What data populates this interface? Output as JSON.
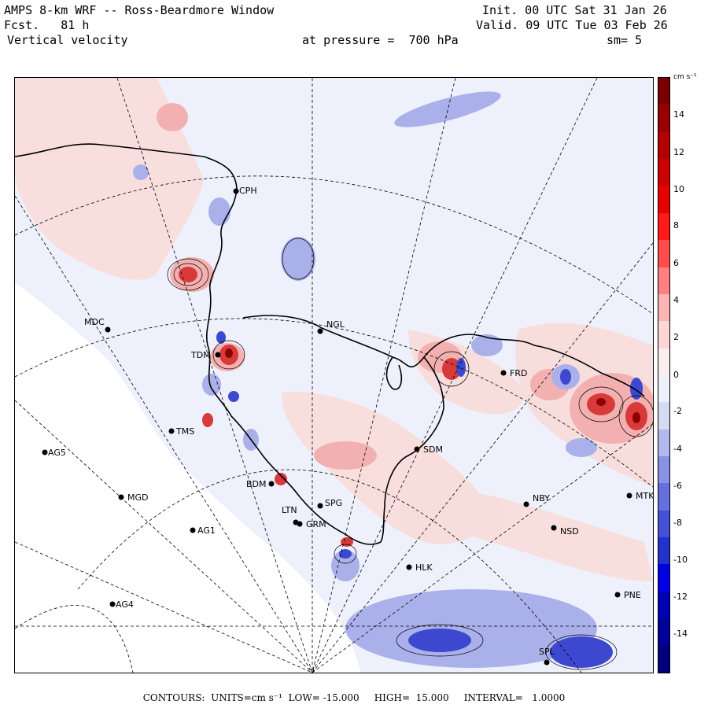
{
  "header": {
    "title": "AMPS 8-km WRF -- Ross-Beardmore Window",
    "fcst": "Fcst.   81 h",
    "field": "Vertical velocity",
    "init": "Init. 00 UTC Sat 31 Jan 26",
    "valid": "Valid. 09 UTC Tue 03 Feb 26",
    "pressure": "at pressure =  700 hPa",
    "smoothing": "sm= 5"
  },
  "colorbar": {
    "unit": "cm s⁻¹",
    "labels": [
      "14",
      "12",
      "10",
      "8",
      "6",
      "4",
      "2",
      "0",
      "-2",
      "-4",
      "-6",
      "-8",
      "-10",
      "-12",
      "-14"
    ],
    "colors": [
      "#7a0000",
      "#990000",
      "#b30000",
      "#cc0000",
      "#e60000",
      "#ff1a1a",
      "#ff4d4d",
      "#ff8080",
      "#ffb3b3",
      "#ffd6d6",
      "#fbeeee",
      "#eef0fb",
      "#d6daf5",
      "#b3b8ee",
      "#8a92e6",
      "#6670dd",
      "#4450d6",
      "#2233cc",
      "#0000e6",
      "#0000b3",
      "#000099",
      "#00007a"
    ]
  },
  "stations": [
    {
      "name": "CPH"
    },
    {
      "name": "MDC"
    },
    {
      "name": "NGL"
    },
    {
      "name": "TDM"
    },
    {
      "name": "FRD"
    },
    {
      "name": "AG5"
    },
    {
      "name": "TMS"
    },
    {
      "name": "SDM"
    },
    {
      "name": "MGD"
    },
    {
      "name": "BDM"
    },
    {
      "name": "NBY"
    },
    {
      "name": "MTK"
    },
    {
      "name": "SPG"
    },
    {
      "name": "LTN"
    },
    {
      "name": "GRM"
    },
    {
      "name": "AG1"
    },
    {
      "name": "NSD"
    },
    {
      "name": "HLK"
    },
    {
      "name": "AG4"
    },
    {
      "name": "PNE"
    },
    {
      "name": "SPL"
    }
  ],
  "footer": {
    "text": "CONTOURS:  UNITS=cm s⁻¹  LOW= -15.000     HIGH=  15.000     INTERVAL=   1.0000"
  },
  "palette": {
    "updraft_light": "#f9dcdc",
    "updraft_mid": "#f2b0b0",
    "updraft_strong": "#d83a3a",
    "updraft_max": "#8b0000",
    "downdraft_light": "#dfe2f7",
    "downdraft_mid": "#a9b0ea",
    "downdraft_strong": "#3c48cf",
    "background": "#eef0fb"
  }
}
